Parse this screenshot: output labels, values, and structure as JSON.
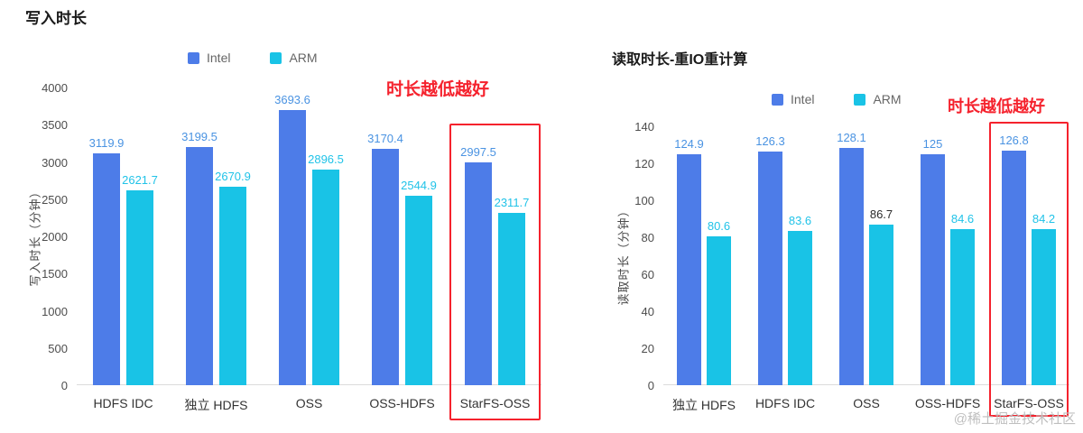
{
  "page": {
    "watermark": "@稀土掘金技术社区"
  },
  "colors": {
    "intel_bar": "#4D7CE8",
    "arm_bar": "#19C3E6",
    "highlight_red": "#F5222D"
  },
  "chart_data": [
    {
      "type": "bar",
      "title": "写入时长",
      "annotation": "时长越低越好",
      "xlabel": "",
      "ylabel": "写入时长（分钟）",
      "ylim": [
        0,
        4000
      ],
      "ytick_step": 500,
      "grid": false,
      "legend_position": "top",
      "categories": [
        "HDFS IDC",
        "独立 HDFS",
        "OSS",
        "OSS-HDFS",
        "StarFS-OSS"
      ],
      "series": [
        {
          "name": "Intel",
          "color": "#4D7CE8",
          "label_color": "#4A93E2",
          "values": [
            3119.9,
            3199.5,
            3693.6,
            3170.4,
            2997.5
          ]
        },
        {
          "name": "ARM",
          "color": "#19C3E6",
          "label_color": "#21C3E8",
          "values": [
            2621.7,
            2670.9,
            2896.5,
            2544.9,
            2311.7
          ]
        }
      ],
      "highlight_category": "StarFS-OSS"
    },
    {
      "type": "bar",
      "title": "读取时长-重IO重计算",
      "annotation": "时长越低越好",
      "xlabel": "",
      "ylabel": "读取时长（分钟）",
      "ylim": [
        0,
        140
      ],
      "ytick_step": 20,
      "grid": false,
      "legend_position": "top",
      "categories": [
        "独立 HDFS",
        "HDFS IDC",
        "OSS",
        "OSS-HDFS",
        "StarFS-OSS"
      ],
      "series": [
        {
          "name": "Intel",
          "color": "#4D7CE8",
          "label_color": "#4A93E2",
          "values": [
            124.9,
            126.3,
            128.1,
            125,
            126.8
          ]
        },
        {
          "name": "ARM",
          "color": "#19C3E6",
          "label_color": "#21C3E8",
          "values": [
            80.6,
            83.6,
            86.7,
            84.6,
            84.2
          ]
        }
      ],
      "label_overrides": [
        {
          "series": 1,
          "index": 2,
          "color": "#2B2B2B"
        }
      ],
      "highlight_category": "StarFS-OSS"
    }
  ]
}
